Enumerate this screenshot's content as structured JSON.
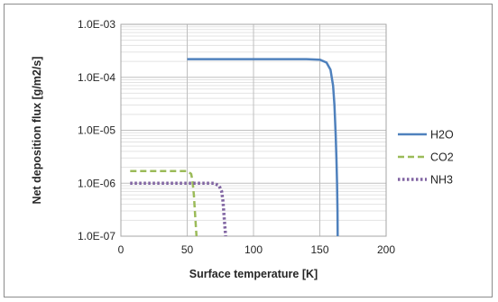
{
  "chart_data": {
    "type": "line",
    "title": "",
    "xlabel": "Surface temperature [K]",
    "ylabel": "Net deposition flux [g/m2/s]",
    "x_scale": "linear",
    "y_scale": "log",
    "xlim": [
      0,
      200
    ],
    "ylim": [
      1e-07,
      0.001
    ],
    "x_ticks": [
      "0",
      "50",
      "100",
      "150",
      "200"
    ],
    "y_ticks": [
      "1.0E-07",
      "1.0E-06",
      "1.0E-05",
      "1.0E-04",
      "1.0E-03"
    ],
    "grid": true,
    "legend_position": "right",
    "series": [
      {
        "name": "H2O",
        "color": "#4f81bd",
        "style": "solid",
        "x": [
          50,
          100,
          140,
          150,
          155,
          158,
          160,
          161,
          162,
          162.5,
          163,
          163.3,
          163.5
        ],
        "y": [
          0.00022,
          0.00022,
          0.00022,
          0.000215,
          0.00019,
          0.00014,
          7e-05,
          3e-05,
          8e-06,
          3e-06,
          1e-06,
          3e-07,
          1e-07
        ]
      },
      {
        "name": "CO2",
        "color": "#9bbb59",
        "style": "dashed",
        "x": [
          7,
          20,
          40,
          50,
          53,
          54,
          55,
          56,
          57
        ],
        "y": [
          1.7e-06,
          1.7e-06,
          1.7e-06,
          1.7e-06,
          1.5e-06,
          1.1e-06,
          6e-07,
          2.5e-07,
          1e-07
        ]
      },
      {
        "name": "NH3",
        "color": "#8064a2",
        "style": "dotted",
        "x": [
          7,
          30,
          60,
          70,
          74,
          76,
          77,
          78,
          79
        ],
        "y": [
          1e-06,
          1e-06,
          1e-06,
          1e-06,
          9e-07,
          7e-07,
          4.5e-07,
          2e-07,
          1e-07
        ]
      }
    ]
  }
}
